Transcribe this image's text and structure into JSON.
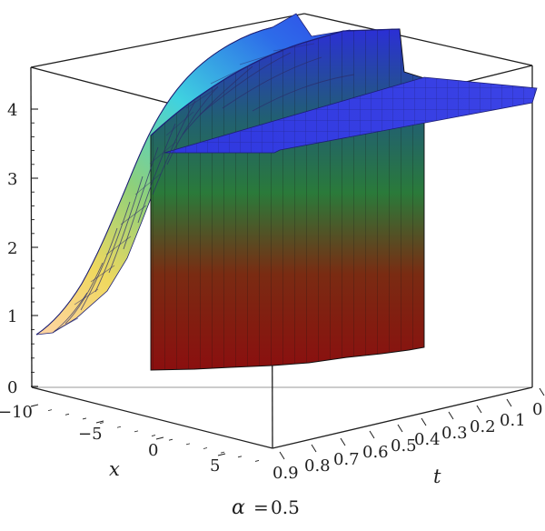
{
  "chart_data": {
    "type": "surface3d",
    "title": "",
    "caption": {
      "symbol": "α",
      "equals": "=",
      "value": "0.5"
    },
    "axes": {
      "x": {
        "label": "x",
        "range": [
          -10,
          10
        ],
        "ticks": [
          "−10",
          "−5",
          "0",
          "5"
        ]
      },
      "t": {
        "label": "t",
        "range": [
          0,
          0.9
        ],
        "ticks": [
          "0.9",
          "0.8",
          "0.7",
          "0.6",
          "0.5",
          "0.4",
          "0.3",
          "0.2",
          "0.1",
          "0"
        ]
      },
      "z": {
        "label": "",
        "range": [
          0,
          4.5
        ],
        "ticks": [
          "0",
          "1",
          "2",
          "3",
          "4"
        ]
      }
    },
    "colors": {
      "low": "#8b0f0f",
      "mid_low": "#556b1a",
      "mid": "#2a7a3a",
      "mid_high": "#1f5a78",
      "high": "#2b2fd6",
      "surface_high": "#3f45e6",
      "grid": "#27287a",
      "axis": "#1f1f1f"
    },
    "surface_profile": {
      "x": [
        -10,
        -9,
        -8,
        -7,
        -6,
        -5,
        -4,
        -3,
        -2,
        -1,
        0
      ],
      "z_at_t0": [
        0.7,
        0.9,
        1.25,
        1.7,
        2.3,
        2.95,
        3.55,
        4.05,
        4.35,
        4.45,
        4.45
      ],
      "z_at_t0_9": [
        4.45,
        4.45,
        4.45,
        4.45,
        4.45,
        4.45,
        4.45,
        4.45,
        4.45,
        4.45,
        4.45
      ]
    },
    "notes": [
      "3D surface plot of solution over x and t"
    ]
  }
}
